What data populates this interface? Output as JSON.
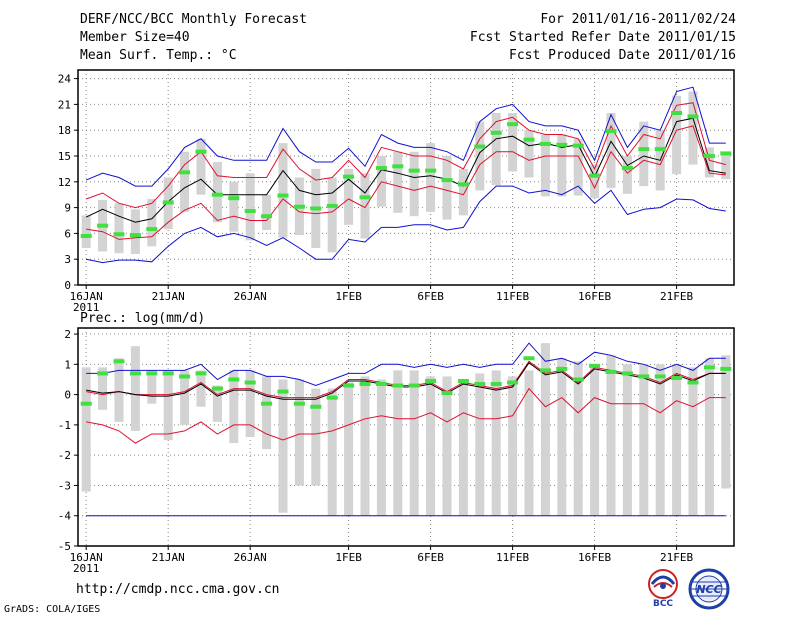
{
  "header": {
    "title": "DERF/NCC/BCC Monthly Forecast",
    "member_size": "Member Size=40",
    "variable": "Mean Surf. Temp.: °C",
    "forecast_period": "For 2011/01/16-2011/02/24",
    "start_date": "Fcst Started Refer Date 2011/01/15",
    "produced_date": "Fcst Produced Date 2011/01/16"
  },
  "footer": {
    "url": "http://cmdp.ncc.cma.gov.cn",
    "source": "GrADS: COLA/IGES"
  },
  "logos": {
    "bcc_text": "BCC",
    "ncc_text": "NCC"
  },
  "colors": {
    "box": "#d3d3d3",
    "green": "#40e040",
    "red": "#e01030",
    "blue": "#1010d0",
    "mean": "#000000",
    "grid": "#888888"
  },
  "chart_data": [
    {
      "type": "box",
      "name": "temperature",
      "ylabel": "",
      "ylim": [
        0,
        25
      ],
      "yticks": [
        0,
        3,
        6,
        9,
        12,
        15,
        18,
        21,
        24
      ],
      "xlim": [
        -0.5,
        39.5
      ],
      "xticks": [
        {
          "day": 0,
          "label": "16JAN",
          "sub": "2011"
        },
        {
          "day": 5,
          "label": "21JAN"
        },
        {
          "day": 10,
          "label": "26JAN"
        },
        {
          "day": 16,
          "label": "1FEB"
        },
        {
          "day": 21,
          "label": "6FEB"
        },
        {
          "day": 26,
          "label": "11FEB"
        },
        {
          "day": 31,
          "label": "16FEB"
        },
        {
          "day": 36,
          "label": "21FEB"
        }
      ],
      "box_low": [
        4.3,
        3.9,
        3.7,
        3.6,
        4.5,
        6.5,
        8.5,
        10.5,
        7.3,
        6.2,
        5.2,
        6.4,
        5.5,
        5.8,
        4.3,
        3.8,
        7.0,
        5.4,
        9.1,
        8.4,
        8.0,
        8.5,
        7.6,
        8.1,
        11.0,
        11.6,
        13.2,
        12.5,
        10.3,
        10.3,
        10.4,
        10.1,
        11.3,
        10.6,
        11.5,
        11.0,
        12.9,
        14.0,
        12.5,
        12.3
      ],
      "box_high": [
        8.1,
        9.9,
        9.5,
        8.8,
        10.0,
        12.5,
        15.5,
        17.0,
        14.3,
        12.0,
        13.0,
        10.5,
        16.5,
        12.5,
        13.5,
        12.5,
        13.5,
        13.0,
        15.0,
        15.5,
        15.5,
        16.5,
        15.0,
        13.5,
        19.0,
        20.0,
        20.0,
        18.0,
        17.5,
        17.5,
        17.0,
        14.0,
        20.0,
        15.0,
        19.0,
        18.0,
        22.0,
        22.5,
        16.0,
        15.5
      ],
      "green": [
        5.7,
        6.9,
        5.9,
        5.8,
        6.5,
        9.6,
        13.1,
        15.5,
        10.5,
        10.1,
        8.6,
        8.0,
        10.4,
        9.1,
        8.9,
        9.2,
        12.6,
        10.2,
        13.6,
        13.8,
        13.3,
        13.3,
        12.2,
        11.7,
        16.1,
        17.7,
        18.7,
        16.9,
        16.4,
        16.3,
        16.2,
        12.7,
        17.9,
        13.6,
        15.8,
        15.8,
        20.0,
        19.6,
        15.0,
        15.3
      ],
      "red_upper": [
        10.0,
        10.7,
        9.5,
        9.0,
        9.5,
        11.5,
        14.0,
        15.5,
        12.7,
        12.5,
        12.5,
        12.5,
        15.8,
        13.5,
        12.2,
        12.5,
        14.5,
        12.5,
        16.0,
        15.5,
        15.0,
        15.0,
        14.5,
        13.5,
        17.0,
        19.0,
        19.5,
        18.0,
        17.5,
        17.5,
        17.0,
        13.5,
        18.5,
        15.0,
        17.5,
        17.0,
        20.9,
        21.2,
        14.5,
        14.0
      ],
      "mean": [
        7.9,
        8.8,
        8.0,
        7.3,
        7.7,
        9.7,
        11.3,
        12.3,
        10.5,
        10.5,
        10.5,
        10.5,
        13.3,
        11.0,
        10.5,
        10.7,
        12.3,
        10.7,
        13.4,
        13.0,
        12.5,
        12.7,
        12.3,
        11.5,
        15.4,
        17.0,
        17.3,
        16.2,
        16.5,
        16.0,
        16.3,
        12.6,
        16.7,
        13.9,
        15.0,
        14.5,
        19.0,
        19.4,
        13.3,
        13.0
      ],
      "red_lower": [
        6.5,
        6.2,
        5.3,
        5.5,
        5.6,
        7.3,
        8.7,
        9.5,
        7.5,
        8.0,
        7.5,
        7.5,
        10.0,
        8.5,
        8.3,
        8.5,
        10.0,
        9.0,
        12.0,
        11.5,
        11.0,
        11.5,
        11.0,
        10.5,
        14.0,
        15.5,
        15.5,
        14.5,
        15.0,
        15.0,
        15.0,
        11.3,
        15.5,
        13.0,
        14.5,
        14.0,
        18.0,
        18.5,
        13.0,
        12.8
      ],
      "blue_upper": [
        12.2,
        13.0,
        12.5,
        11.5,
        11.5,
        13.5,
        16.0,
        17.0,
        15.0,
        14.5,
        14.5,
        14.5,
        18.2,
        15.5,
        14.3,
        14.3,
        15.9,
        13.8,
        17.5,
        16.5,
        16.0,
        16.0,
        15.5,
        14.5,
        19.0,
        20.5,
        21.0,
        19.0,
        18.5,
        18.5,
        18.0,
        14.5,
        19.8,
        16.0,
        18.5,
        18.0,
        22.5,
        23.0,
        16.5,
        16.5
      ],
      "blue_lower": [
        3.0,
        2.6,
        2.9,
        2.9,
        2.7,
        4.5,
        6.0,
        6.7,
        5.6,
        6.0,
        5.5,
        4.6,
        5.5,
        4.3,
        3.0,
        3.0,
        5.3,
        5.0,
        6.7,
        6.7,
        7.0,
        7.0,
        6.4,
        6.7,
        9.7,
        11.5,
        11.5,
        10.7,
        11.0,
        10.5,
        11.5,
        9.5,
        11.0,
        8.2,
        8.8,
        9.0,
        10.0,
        9.9,
        8.9,
        8.6
      ]
    },
    {
      "type": "box",
      "name": "precipitation",
      "ylabel": "Prec.: log(mm/d)",
      "ylim": [
        -5,
        2.2
      ],
      "yticks": [
        -5,
        -4,
        -3,
        -2,
        -1,
        0,
        1,
        2
      ],
      "xlim": [
        -0.5,
        39.5
      ],
      "xticks": [
        {
          "day": 0,
          "label": "16JAN",
          "sub": "2011"
        },
        {
          "day": 5,
          "label": "21JAN"
        },
        {
          "day": 10,
          "label": "26JAN"
        },
        {
          "day": 16,
          "label": "1FEB"
        },
        {
          "day": 21,
          "label": "6FEB"
        },
        {
          "day": 26,
          "label": "11FEB"
        },
        {
          "day": 31,
          "label": "16FEB"
        },
        {
          "day": 36,
          "label": "21FEB"
        }
      ],
      "box_low": [
        -3.2,
        -0.5,
        -0.9,
        -1.2,
        -0.3,
        -1.5,
        -1.0,
        -0.4,
        -0.9,
        -1.6,
        -1.4,
        -1.8,
        -3.9,
        -3.0,
        -3.0,
        -4.0,
        -4.0,
        -4.0,
        -4.0,
        -4.0,
        -4.0,
        -4.0,
        -4.0,
        -4.0,
        -4.0,
        -4.0,
        -4.0,
        -4.0,
        -4.0,
        -4.0,
        -4.0,
        -4.0,
        -4.0,
        -4.0,
        -4.0,
        -4.0,
        -4.0,
        -4.0,
        -4.0,
        -3.1
      ],
      "box_high": [
        0.9,
        0.9,
        1.2,
        1.6,
        0.8,
        0.8,
        0.8,
        0.8,
        0.3,
        0.8,
        0.8,
        0.6,
        0.5,
        0.5,
        0.2,
        0.2,
        0.4,
        0.6,
        0.5,
        0.8,
        0.8,
        0.6,
        0.6,
        0.5,
        0.7,
        0.8,
        0.6,
        0.8,
        1.7,
        1.2,
        1.1,
        1.0,
        1.3,
        1.0,
        1.0,
        1.0,
        1.0,
        0.9,
        1.2,
        1.3
      ],
      "green": [
        -0.3,
        0.7,
        1.1,
        0.7,
        0.7,
        0.7,
        0.6,
        0.7,
        0.2,
        0.5,
        0.4,
        -0.3,
        0.1,
        -0.3,
        -0.4,
        -0.1,
        0.3,
        0.35,
        0.35,
        0.3,
        0.3,
        0.45,
        0.05,
        0.45,
        0.35,
        0.35,
        0.4,
        1.2,
        0.8,
        0.85,
        0.5,
        0.95,
        0.75,
        0.7,
        0.6,
        0.6,
        0.55,
        0.4,
        0.9,
        0.85
      ],
      "red_upper": [
        0.1,
        0.0,
        0.1,
        0.0,
        0.0,
        0.0,
        0.1,
        0.4,
        0.0,
        0.2,
        0.2,
        0.0,
        -0.1,
        -0.1,
        -0.1,
        0.1,
        0.5,
        0.5,
        0.4,
        0.3,
        0.3,
        0.4,
        0.1,
        0.4,
        0.3,
        0.2,
        0.3,
        1.1,
        0.7,
        0.8,
        0.4,
        0.9,
        0.8,
        0.7,
        0.6,
        0.4,
        0.7,
        0.5,
        0.7,
        0.7
      ],
      "mean": [
        0.15,
        0.05,
        0.1,
        0.0,
        -0.05,
        -0.05,
        0.05,
        0.35,
        -0.05,
        0.15,
        0.15,
        -0.05,
        -0.15,
        -0.15,
        -0.15,
        0.05,
        0.45,
        0.45,
        0.35,
        0.25,
        0.25,
        0.35,
        0.05,
        0.35,
        0.25,
        0.15,
        0.25,
        1.05,
        0.65,
        0.75,
        0.35,
        0.85,
        0.75,
        0.65,
        0.55,
        0.35,
        0.65,
        0.45,
        0.7,
        0.7
      ],
      "red_lower": [
        -0.9,
        -1.0,
        -1.2,
        -1.6,
        -1.3,
        -1.3,
        -1.2,
        -0.9,
        -1.3,
        -1.0,
        -1.0,
        -1.3,
        -1.5,
        -1.3,
        -1.3,
        -1.2,
        -1.0,
        -0.8,
        -0.7,
        -0.8,
        -0.8,
        -0.6,
        -0.9,
        -0.6,
        -0.8,
        -0.8,
        -0.7,
        0.2,
        -0.4,
        -0.1,
        -0.6,
        -0.1,
        -0.3,
        -0.3,
        -0.3,
        -0.6,
        -0.2,
        -0.4,
        -0.1,
        -0.1
      ],
      "blue_upper": [
        0.7,
        0.7,
        0.8,
        0.8,
        0.8,
        0.8,
        0.8,
        1.0,
        0.5,
        0.8,
        0.8,
        0.6,
        0.6,
        0.5,
        0.3,
        0.5,
        0.7,
        0.7,
        1.0,
        1.0,
        0.9,
        1.0,
        0.9,
        1.0,
        0.9,
        1.0,
        1.0,
        1.7,
        1.1,
        1.2,
        1.0,
        1.4,
        1.3,
        1.1,
        1.0,
        0.8,
        1.0,
        0.8,
        1.2,
        1.2
      ],
      "blue_lower": [
        -4.0,
        -4.0,
        -4.0,
        -4.0,
        -4.0,
        -4.0,
        -4.0,
        -4.0,
        -4.0,
        -4.0,
        -4.0,
        -4.0,
        -4.0,
        -4.0,
        -4.0,
        -4.0,
        -4.0,
        -4.0,
        -4.0,
        -4.0,
        -4.0,
        -4.0,
        -4.0,
        -4.0,
        -4.0,
        -4.0,
        -4.0,
        -4.0,
        -4.0,
        -4.0,
        -4.0,
        -4.0,
        -4.0,
        -4.0,
        -4.0,
        -4.0,
        -4.0,
        -4.0,
        -4.0,
        -4.0
      ]
    }
  ]
}
